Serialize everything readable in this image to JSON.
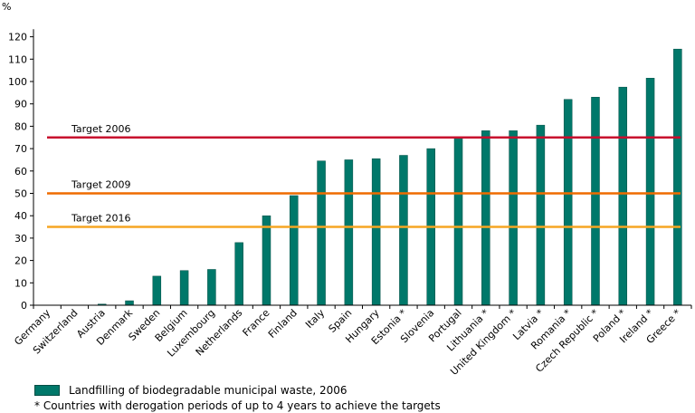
{
  "chart_data": {
    "type": "bar",
    "ylabel": "%",
    "ylim": [
      0,
      125
    ],
    "yticks": [
      0,
      10,
      20,
      30,
      40,
      50,
      60,
      70,
      80,
      90,
      100,
      110,
      120
    ],
    "bar_color": "#00786a",
    "categories": [
      "Germany",
      "Switzerland",
      "Austria",
      "Denmark",
      "Sweden",
      "Belgium",
      "Luxembourg",
      "Netherlands",
      "France",
      "Finland",
      "Italy",
      "Spain",
      "Hungary",
      "Estonia *",
      "Slovenia",
      "Portugal",
      "Lithuania *",
      "United Kingdom *",
      "Latvia *",
      "Romania *",
      "Czech Republic *",
      "Poland *",
      "Ireland *",
      "Greece *"
    ],
    "series": [
      {
        "name": "Landfilling of biodegradable municipal waste, 2006",
        "values": [
          0,
          0,
          0.5,
          2,
          13,
          15.5,
          16,
          28,
          40,
          49,
          64.5,
          65,
          65.5,
          67,
          70,
          75,
          78,
          78,
          80.5,
          92,
          93,
          97.5,
          101.5,
          114.5
        ]
      }
    ],
    "reference_lines": [
      {
        "label": "Target 2006",
        "value": 75,
        "color": "#c8102e"
      },
      {
        "label": "Target 2009",
        "value": 50,
        "color": "#ef6c00"
      },
      {
        "label": "Target 2016",
        "value": 35,
        "color": "#f5a623"
      }
    ]
  },
  "legend_label": "Landfilling of biodegradable municipal waste, 2006",
  "footnote": "* Countries with derogation periods of up to 4 years to achieve the targets"
}
